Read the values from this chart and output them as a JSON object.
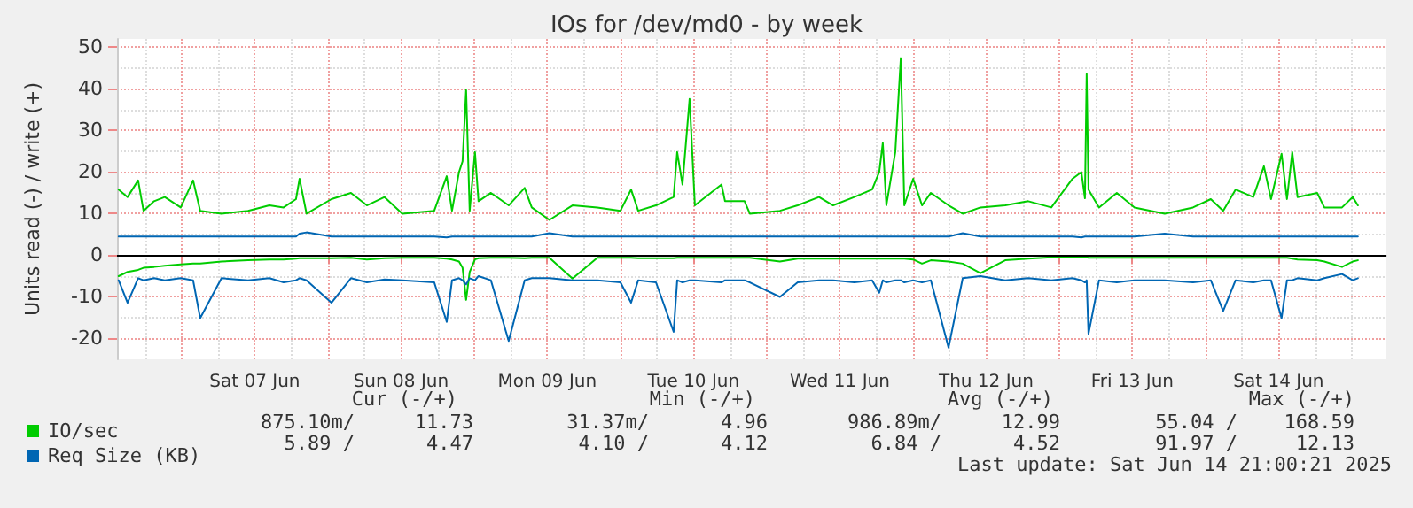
{
  "chart_data": {
    "type": "line",
    "title": "IOs for /dev/md0 - by week",
    "ylabel": "Units read (-) / write (+)",
    "x": [
      "2025-06-06T13:40",
      "2025-06-06T15:08",
      "2025-06-06T16:52",
      "2025-06-06T17:45",
      "2025-06-06T19:29",
      "2025-06-06T21:14",
      "2025-06-06T23:51",
      "2025-06-07T01:53",
      "2025-06-07T03:03",
      "2025-06-07T06:33",
      "2025-06-07T10:54",
      "2025-06-07T14:24",
      "2025-06-07T16:44",
      "2025-06-07T18:46",
      "2025-06-07T19:21",
      "2025-06-07T20:30",
      "2025-06-08T00:35",
      "2025-06-08T03:47",
      "2025-06-08T06:24",
      "2025-06-08T09:18",
      "2025-06-08T12:13",
      "2025-06-08T17:27",
      "2025-06-08T19:30",
      "2025-06-08T20:22",
      "2025-06-08T21:31",
      "2025-06-08T22:06",
      "2025-06-08T22:41",
      "2025-06-08T23:16",
      "2025-06-09T00:08",
      "2025-06-09T00:43",
      "2025-06-09T02:45",
      "2025-06-09T05:40",
      "2025-06-09T08:17",
      "2025-06-09T09:27",
      "2025-06-09T12:21",
      "2025-06-09T16:08",
      "2025-06-09T20:13",
      "2025-06-10T00:00",
      "2025-06-10T01:45",
      "2025-06-10T02:55",
      "2025-06-10T05:50",
      "2025-06-10T08:44",
      "2025-06-10T09:19",
      "2025-06-10T10:11",
      "2025-06-10T11:21",
      "2025-06-10T12:13",
      "2025-06-10T16:35",
      "2025-06-10T17:10",
      "2025-06-10T20:22",
      "2025-06-10T21:14",
      "2025-06-11T02:10",
      "2025-06-11T05:05",
      "2025-06-11T08:35",
      "2025-06-11T10:54",
      "2025-06-11T14:23",
      "2025-06-11T17:18",
      "2025-06-11T18:28",
      "2025-06-11T19:03",
      "2025-06-11T19:38",
      "2025-06-11T21:06",
      "2025-06-11T22:00",
      "2025-06-11T22:35",
      "2025-06-12T00:02",
      "2025-06-12T01:29",
      "2025-06-12T02:56",
      "2025-06-12T05:50",
      "2025-06-12T08:10",
      "2025-06-12T11:04",
      "2025-06-12T15:08",
      "2025-06-12T18:55",
      "2025-06-12T22:42",
      "2025-06-13T02:11",
      "2025-06-13T03:38",
      "2025-06-13T04:13",
      "2025-06-13T04:30",
      "2025-06-13T04:48",
      "2025-06-13T06:32",
      "2025-06-13T09:27",
      "2025-06-13T12:21",
      "2025-06-13T17:18",
      "2025-06-13T21:57",
      "2025-06-14T00:52",
      "2025-06-14T02:54",
      "2025-06-14T04:56",
      "2025-06-14T07:50",
      "2025-06-14T09:35",
      "2025-06-14T10:45",
      "2025-06-14T12:29",
      "2025-06-14T13:22",
      "2025-06-14T14:14",
      "2025-06-14T15:06",
      "2025-06-14T18:20",
      "2025-06-14T19:30",
      "2025-06-14T22:24",
      "2025-06-15T00:09",
      "2025-06-15T01:00"
    ],
    "series": [
      {
        "name": "IO/sec",
        "color": "#00cc00",
        "values": [
          15.8,
          14,
          18,
          10.7,
          13,
          14,
          11.5,
          18,
          10.7,
          10,
          10.7,
          12,
          11.5,
          13.5,
          18.4,
          10,
          13.5,
          15,
          12,
          14,
          10,
          10.7,
          19,
          10.7,
          20,
          22.6,
          39.7,
          10.7,
          24.8,
          13,
          15,
          12,
          16.2,
          11.5,
          8.5,
          12,
          11.5,
          10.7,
          15.8,
          10.7,
          12,
          14,
          24.8,
          17,
          37.6,
          12,
          17,
          13,
          13,
          10,
          10.7,
          12,
          14,
          12,
          14,
          15.8,
          20,
          27,
          12,
          24.8,
          47.4,
          12,
          18.4,
          12,
          15,
          12,
          10,
          11.5,
          12,
          13,
          11.5,
          18.4,
          20,
          13.7,
          43.6,
          15.8,
          11.5,
          15,
          11.5,
          10,
          11.5,
          13.5,
          10.7,
          15.8,
          14,
          21.4,
          13.5,
          24.4,
          13.5,
          24.8,
          14,
          15,
          11.5,
          11.5,
          14,
          12
        ]
      },
      {
        "color": "#00cc00",
        "values": [
          -5,
          -4,
          -3.5,
          -3,
          -2.8,
          -2.5,
          -2.2,
          -2,
          -2,
          -1.5,
          -1.2,
          -1,
          -1,
          -0.8,
          -0.7,
          -0.7,
          -0.7,
          -0.6,
          -1,
          -0.7,
          -0.6,
          -0.6,
          -0.8,
          -1,
          -1.5,
          -3,
          -10.7,
          -4,
          -1,
          -0.7,
          -0.6,
          -0.6,
          -0.7,
          -0.6,
          -0.6,
          -5.6,
          -0.6,
          -0.6,
          -0.6,
          -0.7,
          -0.7,
          -0.7,
          -0.6,
          -0.6,
          -0.6,
          -0.6,
          -0.6,
          -0.6,
          -0.6,
          -0.6,
          -1.5,
          -0.8,
          -0.8,
          -0.8,
          -0.8,
          -0.8,
          -0.8,
          -0.8,
          -0.8,
          -0.8,
          -0.8,
          -0.8,
          -1,
          -2,
          -1.2,
          -1.5,
          -2,
          -4.3,
          -1.2,
          -0.8,
          -0.5,
          -0.5,
          -0.5,
          -0.5,
          -0.5,
          -0.6,
          -0.6,
          -0.6,
          -0.6,
          -0.6,
          -0.6,
          -0.6,
          -0.6,
          -0.6,
          -0.6,
          -0.6,
          -0.6,
          -0.6,
          -0.6,
          -0.8,
          -1,
          -1.2,
          -1.5,
          -2.8,
          -1.5,
          -1.2
        ]
      },
      {
        "name": "Req Size (KB)",
        "color": "#0066b3",
        "values": [
          4.5,
          4.5,
          4.5,
          4.5,
          4.5,
          4.5,
          4.5,
          4.5,
          4.5,
          4.5,
          4.5,
          4.5,
          4.5,
          4.5,
          5.2,
          5.5,
          4.5,
          4.5,
          4.5,
          4.5,
          4.5,
          4.5,
          4.3,
          4.5,
          4.5,
          4.5,
          4.5,
          4.5,
          4.5,
          4.5,
          4.5,
          4.5,
          4.5,
          4.5,
          5.3,
          4.5,
          4.5,
          4.5,
          4.5,
          4.5,
          4.5,
          4.5,
          4.5,
          4.5,
          4.5,
          4.5,
          4.5,
          4.5,
          4.5,
          4.5,
          4.5,
          4.5,
          4.5,
          4.5,
          4.5,
          4.5,
          4.5,
          4.5,
          4.5,
          4.5,
          4.5,
          4.5,
          4.5,
          4.5,
          4.5,
          4.5,
          5.3,
          4.5,
          4.5,
          4.5,
          4.5,
          4.5,
          4.3,
          4.5,
          4.5,
          4.5,
          4.5,
          4.5,
          4.5,
          5.2,
          4.5,
          4.5,
          4.5,
          4.5,
          4.5,
          4.5,
          4.5,
          4.5,
          4.5,
          4.5,
          4.5,
          4.5,
          4.5,
          4.5,
          4.5,
          4.5
        ]
      },
      {
        "color": "#0066b3",
        "values": [
          -6,
          -11.4,
          -5.5,
          -6,
          -5.5,
          -6,
          -5.5,
          -6,
          -15.1,
          -5.5,
          -6,
          -5.5,
          -6.5,
          -6,
          -5.5,
          -6,
          -11.4,
          -5.5,
          -6.5,
          -5.8,
          -6,
          -6.5,
          -16,
          -6,
          -5.5,
          -6,
          -7,
          -5.5,
          -6,
          -5,
          -6,
          -20.6,
          -6,
          -5.5,
          -5.5,
          -6,
          -6,
          -6.5,
          -11.4,
          -6,
          -6.5,
          -18.4,
          -6,
          -6.5,
          -6,
          -6,
          -6.5,
          -6,
          -6,
          -6.5,
          -10,
          -6.5,
          -6,
          -6,
          -6.5,
          -6,
          -9,
          -6,
          -6.5,
          -6,
          -6,
          -6.5,
          -6,
          -6.5,
          -6,
          -22.2,
          -5.5,
          -5,
          -6,
          -5.5,
          -6,
          -5.5,
          -6,
          -6.5,
          -6,
          -18.9,
          -6,
          -6.5,
          -6,
          -6,
          -6.5,
          -6,
          -13.4,
          -6,
          -6.5,
          -6,
          -6,
          -15.1,
          -6,
          -6,
          -5.5,
          -6,
          -5.5,
          -4.5,
          -6,
          -5.5
        ]
      }
    ],
    "xlim": [
      "2025-06-06T13:24",
      "2025-06-15T05:41"
    ],
    "xticks": [
      {
        "value": "2025-06-07T00:00",
        "label": null
      },
      {
        "value": "2025-06-07T12:00",
        "label": "Sat 07 Jun"
      },
      {
        "value": "2025-06-08T00:00",
        "label": null
      },
      {
        "value": "2025-06-08T12:00",
        "label": "Sun 08 Jun"
      },
      {
        "value": "2025-06-09T00:00",
        "label": null
      },
      {
        "value": "2025-06-09T12:00",
        "label": "Mon 09 Jun"
      },
      {
        "value": "2025-06-10T00:00",
        "label": null
      },
      {
        "value": "2025-06-10T12:00",
        "label": "Tue 10 Jun"
      },
      {
        "value": "2025-06-11T00:00",
        "label": null
      },
      {
        "value": "2025-06-11T12:00",
        "label": "Wed 11 Jun"
      },
      {
        "value": "2025-06-12T00:00",
        "label": null
      },
      {
        "value": "2025-06-12T12:00",
        "label": "Thu 12 Jun"
      },
      {
        "value": "2025-06-13T00:00",
        "label": null
      },
      {
        "value": "2025-06-13T12:00",
        "label": "Fri 13 Jun"
      },
      {
        "value": "2025-06-14T00:00",
        "label": null
      },
      {
        "value": "2025-06-14T12:00",
        "label": "Sat 14 Jun"
      }
    ],
    "ylim": [
      -25,
      52
    ],
    "yticks": [
      -20,
      -10,
      0,
      10,
      20,
      30,
      40,
      50
    ],
    "ref_lines": [
      {
        "axis": "y",
        "value": 0,
        "color": "#000000"
      }
    ],
    "grid": true,
    "legend": "bottom left",
    "marker": "none",
    "line_style": "solid",
    "annotations": [
      "Cur (-/+)",
      "Min (-/+)",
      "Avg (-/+)",
      "Max (-/+)",
      "875.10m/",
      "11.73",
      "31.37m/",
      "4.96",
      "986.89m/",
      "12.99",
      "55.04 /",
      "168.59",
      "5.89 /",
      "4.47",
      "4.10 /",
      "4.12",
      "6.84 /",
      "4.52",
      "91.97 /",
      "12.13",
      "Last update: Sat Jun 14 21:00:21 2025"
    ]
  }
}
